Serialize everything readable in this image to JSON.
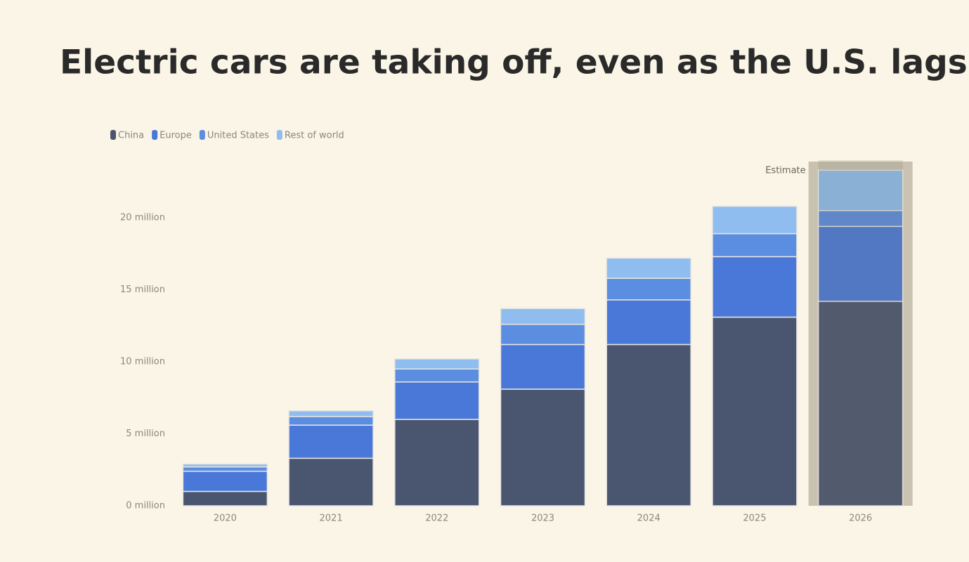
{
  "chart_data": {
    "type": "stacked_bar",
    "title": "Electric cars are taking off, even as the U.S. lags",
    "categories": [
      "2020",
      "2021",
      "2022",
      "2023",
      "2024",
      "2025",
      "2026"
    ],
    "series": [
      {
        "name": "China",
        "color": "#4a5670",
        "values": [
          1.0,
          3.3,
          6.0,
          8.1,
          11.2,
          13.1,
          14.2
        ]
      },
      {
        "name": "Europe",
        "color": "#4a78d8",
        "values": [
          1.4,
          2.3,
          2.6,
          3.1,
          3.1,
          4.2,
          5.2
        ]
      },
      {
        "name": "United States",
        "color": "#5b8de0",
        "values": [
          0.3,
          0.6,
          0.9,
          1.4,
          1.5,
          1.6,
          1.1
        ]
      },
      {
        "name": "Rest of world",
        "color": "#8fbdf0",
        "values": [
          0.2,
          0.4,
          0.7,
          1.1,
          1.4,
          1.9,
          2.8
        ]
      }
    ],
    "ylim": [
      0,
      24
    ],
    "yticks": [
      {
        "value": 0,
        "label": "0 million"
      },
      {
        "value": 5,
        "label": "5 million"
      },
      {
        "value": 10,
        "label": "10 million"
      },
      {
        "value": 15,
        "label": "15 million"
      },
      {
        "value": 20,
        "label": "20 million"
      }
    ],
    "grid": false,
    "legend": "top-left",
    "annotation": "Estimate"
  }
}
